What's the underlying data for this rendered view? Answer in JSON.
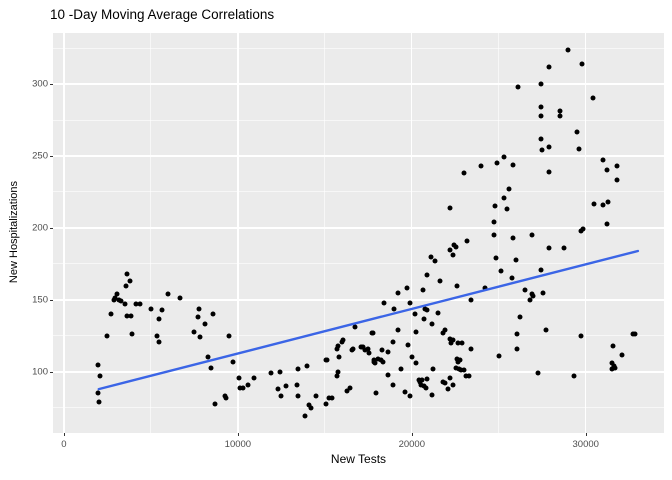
{
  "title": "10 -Day Moving Average Correlations",
  "chart_data": {
    "type": "scatter",
    "title": "10 -Day Moving Average Correlations",
    "xlabel": "New Tests",
    "ylabel": "New Hospitalizations",
    "xlim": [
      -630,
      34500
    ],
    "ylim": [
      57.5,
      335.5
    ],
    "x_major_ticks": [
      0,
      10000,
      20000,
      30000
    ],
    "x_minor_gridlines": [
      5000,
      15000,
      25000
    ],
    "y_major_ticks": [
      100,
      150,
      200,
      250,
      300
    ],
    "y_minor_gridlines": [
      75,
      125,
      175,
      225,
      275,
      325
    ],
    "grid": "on",
    "legend": "none",
    "panel_background": "#EBEBEB",
    "point_color": "#000000",
    "trend_line": {
      "type": "linear",
      "x": [
        2000,
        33000
      ],
      "y": [
        88,
        184
      ],
      "color": "#3B65E6"
    },
    "points": [
      [
        1950,
        105
      ],
      [
        2100,
        97
      ],
      [
        1950,
        85
      ],
      [
        2000,
        79
      ],
      [
        2450,
        125
      ],
      [
        2700,
        140
      ],
      [
        2850,
        150
      ],
      [
        2950,
        151
      ],
      [
        3050,
        154
      ],
      [
        3150,
        150
      ],
      [
        3300,
        149
      ],
      [
        3500,
        147
      ],
      [
        3550,
        160
      ],
      [
        3600,
        168
      ],
      [
        3650,
        139
      ],
      [
        3800,
        163
      ],
      [
        3850,
        139
      ],
      [
        3900,
        126
      ],
      [
        4150,
        147
      ],
      [
        4400,
        147
      ],
      [
        5000,
        144
      ],
      [
        5350,
        125
      ],
      [
        5450,
        121
      ],
      [
        5450,
        137
      ],
      [
        5650,
        143
      ],
      [
        6000,
        154
      ],
      [
        6650,
        151
      ],
      [
        7500,
        128
      ],
      [
        7700,
        138
      ],
      [
        7750,
        144
      ],
      [
        7850,
        124
      ],
      [
        8100,
        133
      ],
      [
        8300,
        110
      ],
      [
        8450,
        103
      ],
      [
        8550,
        140
      ],
      [
        8700,
        78
      ],
      [
        9250,
        83
      ],
      [
        9300,
        82
      ],
      [
        9500,
        125
      ],
      [
        9700,
        107
      ],
      [
        10050,
        96
      ],
      [
        10150,
        89
      ],
      [
        10300,
        89
      ],
      [
        10600,
        91
      ],
      [
        10900,
        96
      ],
      [
        11900,
        99
      ],
      [
        12300,
        88
      ],
      [
        12450,
        100
      ],
      [
        12500,
        83
      ],
      [
        12750,
        90
      ],
      [
        13400,
        91
      ],
      [
        13450,
        83
      ],
      [
        13450,
        102
      ],
      [
        13850,
        69
      ],
      [
        13950,
        104
      ],
      [
        14100,
        77
      ],
      [
        14200,
        75
      ],
      [
        14500,
        83
      ],
      [
        15050,
        78
      ],
      [
        15050,
        108
      ],
      [
        15100,
        108
      ],
      [
        15250,
        82
      ],
      [
        15400,
        82
      ],
      [
        15700,
        97
      ],
      [
        15700,
        116
      ],
      [
        15750,
        100
      ],
      [
        15750,
        118
      ],
      [
        15800,
        110
      ],
      [
        16000,
        121
      ],
      [
        16050,
        122
      ],
      [
        16300,
        87
      ],
      [
        16450,
        89
      ],
      [
        16550,
        115
      ],
      [
        16600,
        116
      ],
      [
        16750,
        131
      ],
      [
        17050,
        117
      ],
      [
        17150,
        117
      ],
      [
        17200,
        117
      ],
      [
        17300,
        115
      ],
      [
        17500,
        116
      ],
      [
        17550,
        113
      ],
      [
        17700,
        127
      ],
      [
        17750,
        127
      ],
      [
        17800,
        107
      ],
      [
        17850,
        108
      ],
      [
        17900,
        106
      ],
      [
        17950,
        85
      ],
      [
        18050,
        109
      ],
      [
        18200,
        108
      ],
      [
        18300,
        115
      ],
      [
        18350,
        107
      ],
      [
        18400,
        148
      ],
      [
        18650,
        114
      ],
      [
        18650,
        98
      ],
      [
        18900,
        121
      ],
      [
        18900,
        91
      ],
      [
        18950,
        144
      ],
      [
        19200,
        129
      ],
      [
        19200,
        155
      ],
      [
        19400,
        102
      ],
      [
        19600,
        86
      ],
      [
        19750,
        158
      ],
      [
        19800,
        119
      ],
      [
        19900,
        83
      ],
      [
        19900,
        148
      ],
      [
        20000,
        110
      ],
      [
        20200,
        140
      ],
      [
        20250,
        106
      ],
      [
        20250,
        128
      ],
      [
        20400,
        94
      ],
      [
        20450,
        93
      ],
      [
        20550,
        91
      ],
      [
        20600,
        94
      ],
      [
        20650,
        157
      ],
      [
        20700,
        137
      ],
      [
        20700,
        90
      ],
      [
        20750,
        144
      ],
      [
        20800,
        89
      ],
      [
        20850,
        95
      ],
      [
        20900,
        143
      ],
      [
        20900,
        167
      ],
      [
        21100,
        180
      ],
      [
        21150,
        84
      ],
      [
        21150,
        133
      ],
      [
        21200,
        102
      ],
      [
        21350,
        177
      ],
      [
        21500,
        141
      ],
      [
        21600,
        163
      ],
      [
        21800,
        127
      ],
      [
        21800,
        93
      ],
      [
        21900,
        129
      ],
      [
        21900,
        92
      ],
      [
        22100,
        88
      ],
      [
        22200,
        96
      ],
      [
        22200,
        123
      ],
      [
        22200,
        185
      ],
      [
        22250,
        120
      ],
      [
        22200,
        214
      ],
      [
        22350,
        122
      ],
      [
        22350,
        181
      ],
      [
        22400,
        188
      ],
      [
        22350,
        91
      ],
      [
        22550,
        187
      ],
      [
        22550,
        103
      ],
      [
        22600,
        160
      ],
      [
        22600,
        109
      ],
      [
        22650,
        120
      ],
      [
        22650,
        107
      ],
      [
        22700,
        102
      ],
      [
        22750,
        108
      ],
      [
        22850,
        101
      ],
      [
        22900,
        120
      ],
      [
        23000,
        101
      ],
      [
        23000,
        238
      ],
      [
        23100,
        97
      ],
      [
        23150,
        191
      ],
      [
        23300,
        97
      ],
      [
        23400,
        116
      ],
      [
        23400,
        150
      ],
      [
        24000,
        243
      ],
      [
        24200,
        158
      ],
      [
        24700,
        204
      ],
      [
        24750,
        195
      ],
      [
        24800,
        215
      ],
      [
        24850,
        179
      ],
      [
        24900,
        245
      ],
      [
        25000,
        111
      ],
      [
        25150,
        170
      ],
      [
        25300,
        221
      ],
      [
        25300,
        249
      ],
      [
        25500,
        213
      ],
      [
        25600,
        227
      ],
      [
        25750,
        165
      ],
      [
        25800,
        193
      ],
      [
        25800,
        244
      ],
      [
        26000,
        178
      ],
      [
        26050,
        116
      ],
      [
        26050,
        126
      ],
      [
        26100,
        298
      ],
      [
        26200,
        138
      ],
      [
        26500,
        157
      ],
      [
        26800,
        150
      ],
      [
        26900,
        154
      ],
      [
        26900,
        195
      ],
      [
        26950,
        153
      ],
      [
        27250,
        99
      ],
      [
        27400,
        171
      ],
      [
        27400,
        262
      ],
      [
        27400,
        278
      ],
      [
        27400,
        284
      ],
      [
        27400,
        300
      ],
      [
        27550,
        155
      ],
      [
        27500,
        254
      ],
      [
        27700,
        129
      ],
      [
        27900,
        186
      ],
      [
        27900,
        239
      ],
      [
        27900,
        256
      ],
      [
        27900,
        312
      ],
      [
        28500,
        278
      ],
      [
        28500,
        281
      ],
      [
        28750,
        186
      ],
      [
        29000,
        324
      ],
      [
        29300,
        97
      ],
      [
        29500,
        267
      ],
      [
        29600,
        255
      ],
      [
        29700,
        198
      ],
      [
        29750,
        125
      ],
      [
        29800,
        314
      ],
      [
        29850,
        199
      ],
      [
        30400,
        290
      ],
      [
        30500,
        217
      ],
      [
        31000,
        216
      ],
      [
        31000,
        247
      ],
      [
        31200,
        203
      ],
      [
        31200,
        240
      ],
      [
        31300,
        218
      ],
      [
        31500,
        106
      ],
      [
        31500,
        102
      ],
      [
        31550,
        118
      ],
      [
        31650,
        104
      ],
      [
        31700,
        103
      ],
      [
        31800,
        233
      ],
      [
        31800,
        243
      ],
      [
        32100,
        112
      ],
      [
        32700,
        126
      ],
      [
        32850,
        126
      ]
    ]
  }
}
